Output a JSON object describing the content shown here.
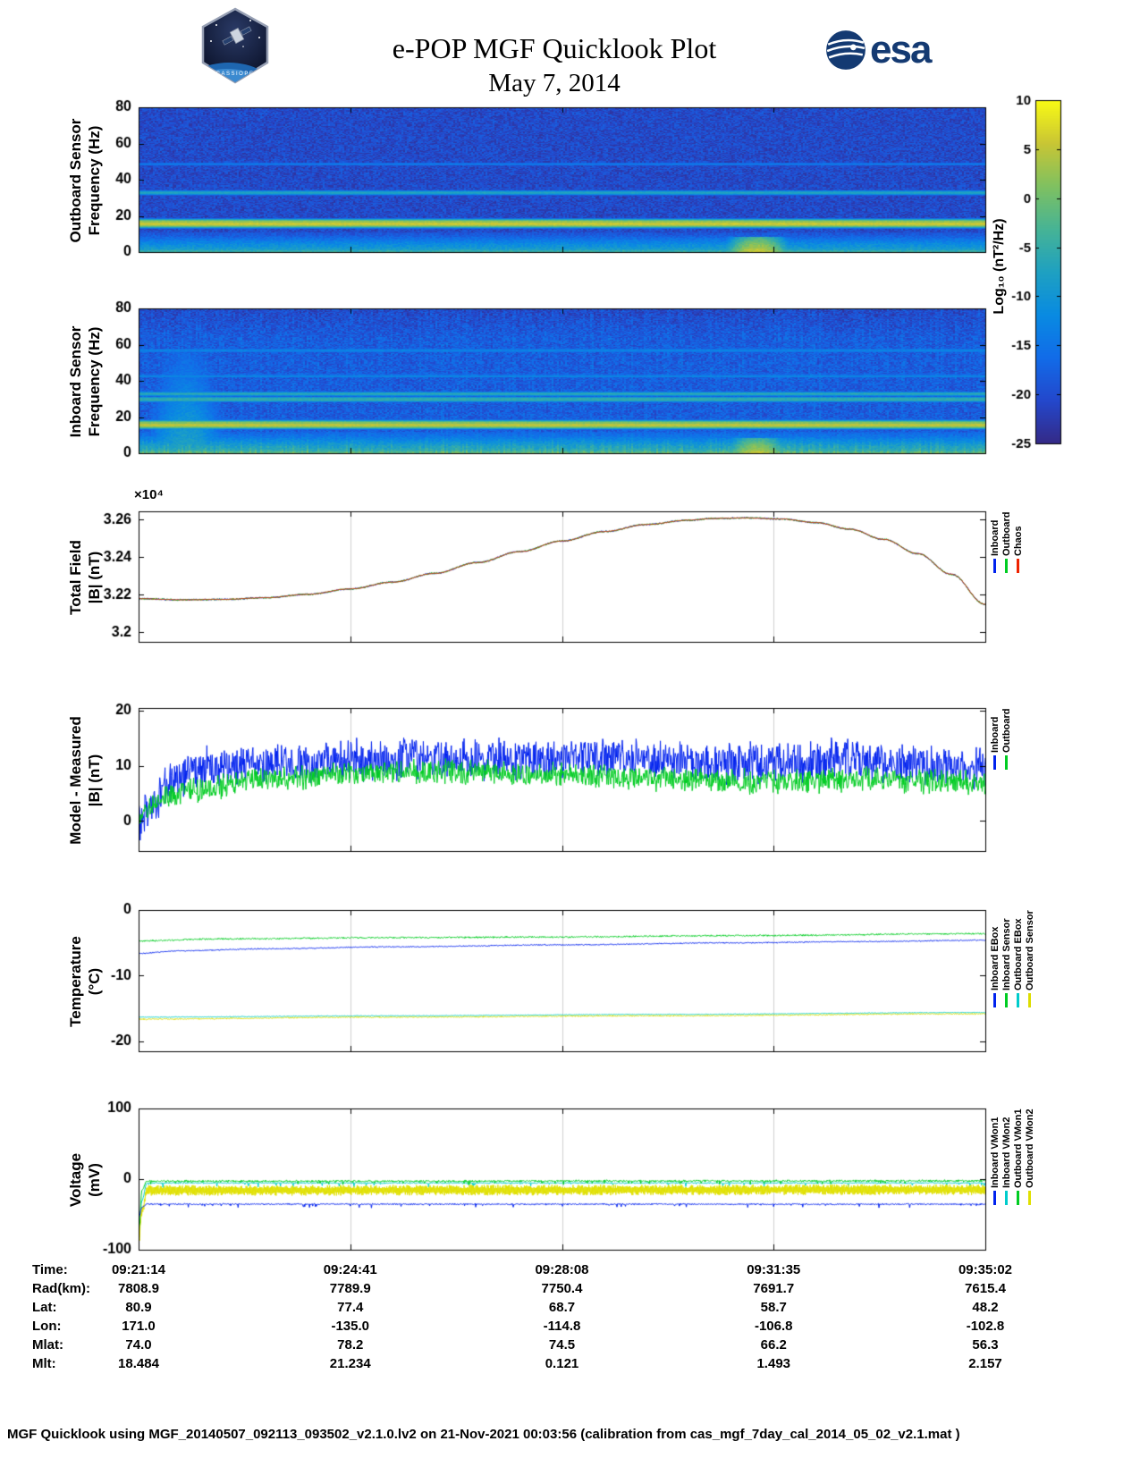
{
  "header": {
    "title": "e-POP MGF Quicklook Plot",
    "date": "May 7, 2014",
    "esa_text": "esa",
    "mission_patch_text": "CASSIOPE"
  },
  "colorbar": {
    "label": "Log₁₀ (nT²/Hz)",
    "clim": [
      -25,
      10
    ],
    "ticks": [
      10,
      5,
      0,
      -5,
      -10,
      -15,
      -20,
      -25
    ]
  },
  "chart_data": [
    {
      "id": "outboard-spectrogram",
      "type": "heatmap",
      "ylabel_lines": [
        "Outboard Sensor",
        "Frequency (Hz)"
      ],
      "ylim": [
        0,
        80
      ],
      "yticks": [
        0,
        20,
        40,
        60,
        80
      ],
      "ytick_labels": [
        "0",
        "20",
        "40",
        "60",
        "80"
      ],
      "clim": [
        -25,
        10
      ],
      "background_level": -20.5,
      "background_noise": 3.0,
      "vertical_striping": 0,
      "bands": [
        {
          "freq": 16,
          "width": 1.4,
          "level": 6,
          "name": "strong 16 Hz interference line"
        },
        {
          "freq": 33,
          "width": 1.1,
          "level": -7,
          "name": "33 Hz interference line"
        },
        {
          "freq": 49,
          "width": 0.9,
          "level": -14,
          "name": "faint 49 Hz line"
        }
      ],
      "lowfreq_noise": {
        "max_freq": 11,
        "peak_level": -6
      },
      "bursts": [
        {
          "x": 0.73,
          "width": 0.02,
          "max_freq": 9,
          "peak_level": 7,
          "freq_falloff": 1.2,
          "name": "low-frequency emission burst"
        }
      ]
    },
    {
      "id": "inboard-spectrogram",
      "type": "heatmap",
      "ylabel_lines": [
        "Inboard Sensor",
        "Frequency (Hz)"
      ],
      "ylim": [
        0,
        80
      ],
      "yticks": [
        0,
        20,
        40,
        60,
        80
      ],
      "ytick_labels": [
        "0",
        "20",
        "40",
        "60",
        "80"
      ],
      "clim": [
        -25,
        10
      ],
      "background_level": -18.5,
      "background_noise": 3.2,
      "vertical_striping": 1,
      "high_freq_dim": {
        "above": 63,
        "amount": 2.5
      },
      "bands": [
        {
          "freq": 16,
          "width": 1.4,
          "level": 5,
          "name": "strong 16 Hz interference line"
        },
        {
          "freq": 30,
          "width": 1.0,
          "level": -5,
          "name": "30 Hz interference line"
        },
        {
          "freq": 33,
          "width": 1.0,
          "level": -6,
          "name": "33 Hz interference line"
        },
        {
          "freq": 43,
          "width": 0.8,
          "level": -12,
          "name": "faint 43 Hz line"
        },
        {
          "freq": 57,
          "width": 0.8,
          "level": -13,
          "name": "faint 57 Hz line"
        }
      ],
      "lowfreq_noise": {
        "max_freq": 12,
        "peak_level": -4
      },
      "bursts": [
        {
          "x": 0.055,
          "width": 0.03,
          "max_freq": 58,
          "peak_level": -7,
          "freq_falloff": 0.18,
          "name": "broadband enhancement near start"
        },
        {
          "x": 0.73,
          "width": 0.02,
          "max_freq": 9,
          "peak_level": 6,
          "freq_falloff": 1.2,
          "name": "low-frequency emission burst"
        }
      ]
    },
    {
      "id": "total-field",
      "type": "line",
      "ylabel_lines": [
        "Total Field",
        "|B| (nT)"
      ],
      "y_multiplier": "×10⁴",
      "ylim": [
        3.195,
        3.2645
      ],
      "yticks": [
        3.2,
        3.22,
        3.24,
        3.26
      ],
      "ytick_labels": [
        "3.2",
        "3.22",
        "3.24",
        "3.26"
      ],
      "xgrid": [
        0.25,
        0.5,
        0.75
      ],
      "series": [
        {
          "name": "Inboard",
          "color": "#0022ee",
          "noise": 0.0005,
          "keypoints": [
            [
              0,
              3.218
            ],
            [
              0.05,
              3.2174
            ],
            [
              0.1,
              3.2176
            ],
            [
              0.15,
              3.2185
            ],
            [
              0.2,
              3.2203
            ],
            [
              0.25,
              3.2232
            ],
            [
              0.3,
              3.2268
            ],
            [
              0.35,
              3.2315
            ],
            [
              0.4,
              3.2372
            ],
            [
              0.45,
              3.243
            ],
            [
              0.5,
              3.2487
            ],
            [
              0.55,
              3.2537
            ],
            [
              0.6,
              3.2575
            ],
            [
              0.65,
              3.2598
            ],
            [
              0.68,
              3.2607
            ],
            [
              0.72,
              3.261
            ],
            [
              0.76,
              3.2604
            ],
            [
              0.8,
              3.2585
            ],
            [
              0.84,
              3.255
            ],
            [
              0.88,
              3.2496
            ],
            [
              0.92,
              3.242
            ],
            [
              0.96,
              3.231
            ],
            [
              1,
              3.215
            ]
          ]
        },
        {
          "name": "Outboard",
          "color": "#00cc22",
          "noise": 0.0005,
          "keypoints": [
            [
              0,
              3.218
            ],
            [
              0.05,
              3.2174
            ],
            [
              0.1,
              3.2176
            ],
            [
              0.15,
              3.2185
            ],
            [
              0.2,
              3.2203
            ],
            [
              0.25,
              3.2232
            ],
            [
              0.3,
              3.2268
            ],
            [
              0.35,
              3.2315
            ],
            [
              0.4,
              3.2372
            ],
            [
              0.45,
              3.243
            ],
            [
              0.5,
              3.2487
            ],
            [
              0.55,
              3.2537
            ],
            [
              0.6,
              3.2575
            ],
            [
              0.65,
              3.2598
            ],
            [
              0.68,
              3.2607
            ],
            [
              0.72,
              3.261
            ],
            [
              0.76,
              3.2604
            ],
            [
              0.8,
              3.2585
            ],
            [
              0.84,
              3.255
            ],
            [
              0.88,
              3.2496
            ],
            [
              0.92,
              3.242
            ],
            [
              0.96,
              3.231
            ],
            [
              1,
              3.215
            ]
          ]
        },
        {
          "name": "Chaos",
          "color": "#ee2200",
          "noise": 0.0002,
          "keypoints": [
            [
              0,
              3.218
            ],
            [
              0.05,
              3.2174
            ],
            [
              0.1,
              3.2176
            ],
            [
              0.15,
              3.2185
            ],
            [
              0.2,
              3.2203
            ],
            [
              0.25,
              3.2232
            ],
            [
              0.3,
              3.2268
            ],
            [
              0.35,
              3.2315
            ],
            [
              0.4,
              3.2372
            ],
            [
              0.45,
              3.243
            ],
            [
              0.5,
              3.2487
            ],
            [
              0.55,
              3.2537
            ],
            [
              0.6,
              3.2575
            ],
            [
              0.65,
              3.2598
            ],
            [
              0.68,
              3.2607
            ],
            [
              0.72,
              3.261
            ],
            [
              0.76,
              3.2604
            ],
            [
              0.8,
              3.2585
            ],
            [
              0.84,
              3.255
            ],
            [
              0.88,
              3.2496
            ],
            [
              0.92,
              3.242
            ],
            [
              0.96,
              3.231
            ],
            [
              1,
              3.215
            ]
          ]
        }
      ],
      "legend": [
        {
          "label": "Inboard",
          "color": "#0022ee"
        },
        {
          "label": "Outboard",
          "color": "#00cc22"
        },
        {
          "label": "Chaos",
          "color": "#ee2200"
        }
      ]
    },
    {
      "id": "model-minus-measured",
      "type": "line",
      "ylabel_lines": [
        "Model - Measured",
        "|B| (nT)"
      ],
      "ylim": [
        -5.5,
        20.5
      ],
      "yticks": [
        0,
        10,
        20
      ],
      "ytick_labels": [
        "0",
        "10",
        "20"
      ],
      "xgrid": [
        0.25,
        0.5,
        0.75
      ],
      "series": [
        {
          "name": "Inboard",
          "color": "#0022ee",
          "noise": 4.3,
          "keypoints": [
            [
              0,
              -0.5
            ],
            [
              0.015,
              3
            ],
            [
              0.04,
              7
            ],
            [
              0.08,
              9.5
            ],
            [
              0.15,
              10.5
            ],
            [
              0.25,
              11
            ],
            [
              0.35,
              11.5
            ],
            [
              0.45,
              11
            ],
            [
              0.55,
              11.5
            ],
            [
              0.65,
              10.5
            ],
            [
              0.75,
              10.5
            ],
            [
              0.85,
              11
            ],
            [
              0.95,
              10
            ],
            [
              1,
              9.5
            ]
          ]
        },
        {
          "name": "Outboard",
          "color": "#00cc22",
          "noise": 2.6,
          "keypoints": [
            [
              0,
              1
            ],
            [
              0.03,
              4.5
            ],
            [
              0.08,
              6
            ],
            [
              0.15,
              7.5
            ],
            [
              0.25,
              8.5
            ],
            [
              0.35,
              9
            ],
            [
              0.45,
              8.5
            ],
            [
              0.55,
              8
            ],
            [
              0.65,
              7.5
            ],
            [
              0.75,
              7
            ],
            [
              0.85,
              7.5
            ],
            [
              1,
              7
            ]
          ]
        }
      ],
      "legend": [
        {
          "label": "Inboard",
          "color": "#0022ee"
        },
        {
          "label": "Outboard",
          "color": "#00cc22"
        }
      ]
    },
    {
      "id": "temperature",
      "type": "line",
      "ylabel_lines": [
        "Temperature",
        "(°C)"
      ],
      "ylim": [
        -21.5,
        0
      ],
      "yticks": [
        0,
        -10,
        -20
      ],
      "ytick_labels": [
        "0",
        "-10",
        "-20"
      ],
      "xgrid": [
        0.25,
        0.5,
        0.75
      ],
      "series": [
        {
          "name": "Inboard EBox",
          "color": "#0022ee",
          "noise": 0.1,
          "keypoints": [
            [
              0,
              -6.6
            ],
            [
              0.05,
              -6.2
            ],
            [
              0.15,
              -5.9
            ],
            [
              0.3,
              -5.6
            ],
            [
              0.5,
              -5.3
            ],
            [
              0.7,
              -5.0
            ],
            [
              0.85,
              -4.8
            ],
            [
              1,
              -4.6
            ]
          ]
        },
        {
          "name": "Inboard Sensor",
          "color": "#00cc22",
          "noise": 0.15,
          "keypoints": [
            [
              0,
              -4.7
            ],
            [
              0.1,
              -4.4
            ],
            [
              0.3,
              -4.2
            ],
            [
              0.5,
              -4.1
            ],
            [
              0.7,
              -3.9
            ],
            [
              1,
              -3.6
            ]
          ]
        },
        {
          "name": "Outboard EBox",
          "color": "#00cccc",
          "noise": 0.07,
          "keypoints": [
            [
              0,
              -16.3
            ],
            [
              0.3,
              -16.1
            ],
            [
              0.6,
              -15.9
            ],
            [
              1,
              -15.6
            ]
          ]
        },
        {
          "name": "Outboard Sensor",
          "color": "#dddd00",
          "noise": 0.12,
          "keypoints": [
            [
              0,
              -16.6
            ],
            [
              0.3,
              -16.3
            ],
            [
              0.6,
              -16.1
            ],
            [
              1,
              -15.8
            ]
          ]
        }
      ],
      "legend": [
        {
          "label": "Inboard EBox",
          "color": "#0022ee"
        },
        {
          "label": "Inboard Sensor",
          "color": "#00cc22"
        },
        {
          "label": "Outboard EBox",
          "color": "#00cccc"
        },
        {
          "label": "Outboard Sensor",
          "color": "#dddd00"
        }
      ]
    },
    {
      "id": "voltage",
      "type": "line",
      "ylabel_lines": [
        "Voltage",
        "(mV)"
      ],
      "ylim": [
        -100,
        100
      ],
      "yticks": [
        100,
        0,
        -100
      ],
      "ytick_labels": [
        "100",
        "0",
        "-100"
      ],
      "xgrid": [
        0.25,
        0.5,
        0.75
      ],
      "series": [
        {
          "name": "Inboard VMon2",
          "color": "#00cccc",
          "noise": 1.2,
          "spike_prob": 0.03,
          "spike_amp": -6,
          "keypoints": [
            [
              0,
              -80
            ],
            [
              0.004,
              -30
            ],
            [
              0.01,
              -5.5
            ],
            [
              1,
              -5.5
            ]
          ]
        },
        {
          "name": "Outboard VMon1",
          "color": "#00cc22",
          "noise": 1.8,
          "spike_prob": 0.05,
          "spike_amp": -5,
          "keypoints": [
            [
              0,
              -88
            ],
            [
              0.004,
              -15
            ],
            [
              0.01,
              -3
            ],
            [
              1,
              -2.5
            ]
          ]
        },
        {
          "name": "Outboard VMon2",
          "color": "#e0e000",
          "noise": 7.5,
          "square": true,
          "keypoints": [
            [
              0,
              -90
            ],
            [
              0.004,
              -45
            ],
            [
              0.01,
              -16
            ],
            [
              1,
              -15
            ]
          ]
        },
        {
          "name": "Inboard VMon1",
          "color": "#0022ee",
          "noise": 1.2,
          "spike_prob": 0.04,
          "spike_amp": -5,
          "keypoints": [
            [
              0,
              -55
            ],
            [
              0.004,
              -40
            ],
            [
              0.01,
              -35.5
            ],
            [
              1,
              -35.5
            ]
          ]
        }
      ],
      "legend": [
        {
          "label": "Inboard VMon1",
          "color": "#0022ee"
        },
        {
          "label": "Inboard VMon2",
          "color": "#00cccc"
        },
        {
          "label": "Outboard VMon1",
          "color": "#00cc22"
        },
        {
          "label": "Outboard VMon2",
          "color": "#e0e000"
        }
      ]
    }
  ],
  "ephemeris": {
    "rows": [
      {
        "label": "Time:",
        "values": [
          "09:21:14",
          "09:24:41",
          "09:28:08",
          "09:31:35",
          "09:35:02"
        ]
      },
      {
        "label": "Rad(km):",
        "values": [
          "7808.9",
          "7789.9",
          "7750.4",
          "7691.7",
          "7615.4"
        ]
      },
      {
        "label": "Lat:",
        "values": [
          "80.9",
          "77.4",
          "68.7",
          "58.7",
          "48.2"
        ]
      },
      {
        "label": "Lon:",
        "values": [
          "171.0",
          "-135.0",
          "-114.8",
          "-106.8",
          "-102.8"
        ]
      },
      {
        "label": "Mlat:",
        "values": [
          "74.0",
          "78.2",
          "74.5",
          "66.2",
          "56.3"
        ]
      },
      {
        "label": "Mlt:",
        "values": [
          "18.484",
          "21.234",
          "0.121",
          "1.493",
          "2.157"
        ]
      }
    ]
  },
  "footer": {
    "text": "MGF Quicklook using MGF_20140507_092113_093502_v2.1.0.lv2 on 21-Nov-2021 00:03:56 (calibration from cas_mgf_7day_cal_2014_05_02_v2.1.mat )"
  }
}
